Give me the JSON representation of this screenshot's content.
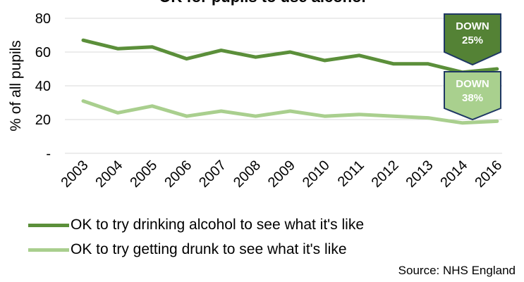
{
  "chart_data": {
    "type": "line",
    "title": "OK for pupils to use alcohol",
    "ylabel": "% of all pupils",
    "xlabel": "",
    "ylim": [
      0,
      80
    ],
    "yticks": [
      {
        "value": 0,
        "label": "-"
      },
      {
        "value": 20,
        "label": "20"
      },
      {
        "value": 40,
        "label": "40"
      },
      {
        "value": 60,
        "label": "60"
      },
      {
        "value": 80,
        "label": "80"
      }
    ],
    "x": [
      "2003",
      "2004",
      "2005",
      "2006",
      "2007",
      "2008",
      "2009",
      "2010",
      "2011",
      "2012",
      "2013",
      "2014",
      "2016"
    ],
    "grid": "horizontal",
    "legend_position": "bottom",
    "series": [
      {
        "name": "OK to try drinking alcohol to see what it's like",
        "color": "#5b8f3a",
        "values": [
          67,
          62,
          63,
          56,
          61,
          57,
          60,
          55,
          58,
          53,
          53,
          48,
          50
        ],
        "badge": {
          "line1": "DOWN",
          "line2": "25%",
          "fill": "#548235",
          "stroke": "#1f3864"
        }
      },
      {
        "name": "OK to try getting drunk to see what it's like",
        "color": "#a9cf8e",
        "values": [
          31,
          24,
          28,
          22,
          25,
          22,
          25,
          22,
          23,
          22,
          21,
          18,
          19
        ],
        "badge": {
          "line1": "DOWN",
          "line2": "38%",
          "fill": "#a9d08e",
          "stroke": "#1f3864"
        }
      }
    ]
  },
  "source": "Source: NHS England"
}
